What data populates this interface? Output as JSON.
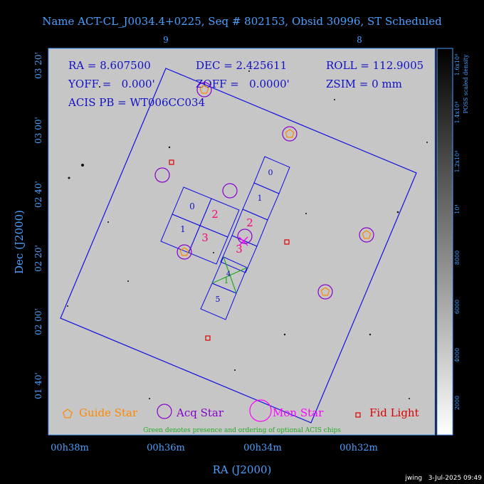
{
  "title": "Name ACT-CL_J0034.4+0225, Seq # 802153, Obsid 30996, ST Scheduled",
  "top_ticks": [
    "9",
    "8"
  ],
  "info": {
    "ra": "RA = 8.607500",
    "dec": "DEC = 2.425611",
    "roll": "ROLL = 112.9005",
    "yoff": "YOFF =   0.000'",
    "zoff": "ZOFF =   0.0000'",
    "zsim": "ZSIM = 0 mm",
    "acis_pb": "ACIS PB = WT006CC034"
  },
  "dec_ticks": [
    "03 20'",
    "03 00'",
    "02 40'",
    "02 20'",
    "02 00'",
    "01 40'"
  ],
  "ra_ticks": [
    "00h38m",
    "00h36m",
    "00h34m",
    "00h32m"
  ],
  "x_axis_label": "RA (J2000)",
  "y_axis_label": "Dec (J2000)",
  "colorbar": {
    "ticks": [
      "2000",
      "4000",
      "6000",
      "8000",
      "10⁴",
      "1.2x10⁴",
      "1.4x10⁴",
      "1.6x10⁴"
    ],
    "label": "POSS scaled density"
  },
  "chips_left": [
    "0",
    "2",
    "1",
    "3"
  ],
  "chips_right": [
    "0",
    "1",
    "2",
    "3",
    "4",
    "5"
  ],
  "chip_extra": "1",
  "legend": {
    "guide": "Guide Star",
    "acq": "Acq Star",
    "mon": "Mon Star",
    "fid": "Fid Light",
    "note": "Green denotes presence and ordering of optional ACIS chips"
  },
  "footer": "jwing   3-Jul-2025 09:49",
  "colors": {
    "axis": "#4aa0ff",
    "fov": "#1010e0",
    "guide": "#ff8800",
    "acq": "#8800cc",
    "mon": "#ff00ff",
    "fid": "#dd0000",
    "chip_label": "#ff0077",
    "green": "#22aa22"
  }
}
